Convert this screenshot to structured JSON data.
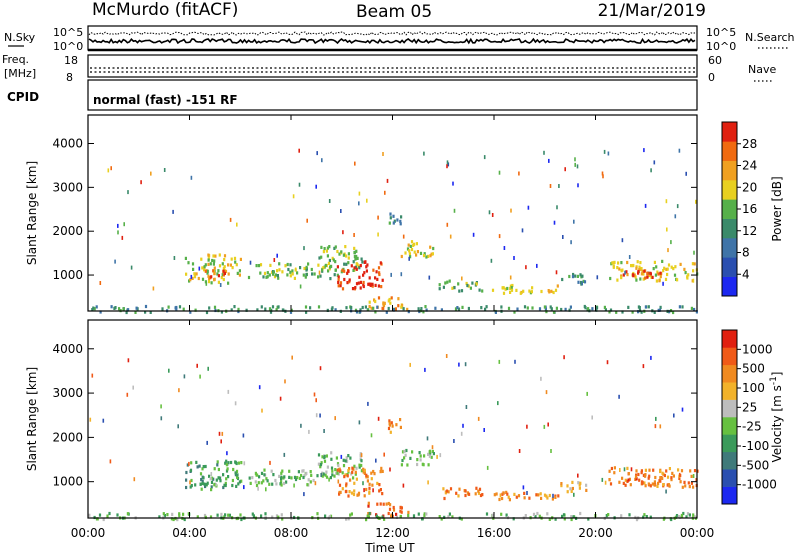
{
  "header": {
    "station": "McMurdo (fitACF)",
    "beam": "Beam 05",
    "date": "21/Mar/2019"
  },
  "noise_panel": {
    "left_label": "N.Sky",
    "left_ticks": [
      "10^5",
      "10^0"
    ],
    "right_label": "N.Search",
    "right_ticks": [
      "10^5",
      "10^0"
    ]
  },
  "freq_panel": {
    "left_label_line1": "Freq.",
    "left_label_line2": "[MHz]",
    "left_ticks": [
      "18",
      "8"
    ],
    "right_label": "Nave",
    "right_ticks": [
      "60",
      "0"
    ]
  },
  "cpid_panel": {
    "label": "CPID",
    "text": "normal (fast) -151 RF"
  },
  "colors": {
    "power": [
      "#1c28f0",
      "#2a4fb0",
      "#3f74a8",
      "#3a8a6a",
      "#56b04a",
      "#e8d020",
      "#f0a020",
      "#f06a10",
      "#e02010"
    ],
    "velocity": [
      "#1c28f0",
      "#2a4fb0",
      "#3f7a7a",
      "#3a9a5a",
      "#66c040",
      "#bdbdbd",
      "#f2b22a",
      "#f08a20",
      "#f05a18",
      "#e02010"
    ]
  },
  "chart_data": [
    {
      "type": "heatmap",
      "title": "Power",
      "xlabel": "Time UT",
      "ylabel": "Slant Range [km]",
      "x_ticks": [
        "00:00",
        "04:00",
        "08:00",
        "12:00",
        "16:00",
        "20:00",
        "00:00"
      ],
      "xlim_hours": [
        0,
        24
      ],
      "ylim_km": [
        180,
        4650
      ],
      "y_ticks": [
        1000,
        2000,
        3000,
        4000
      ],
      "colorbar": {
        "label": "Power [dB]",
        "range": [
          0,
          32
        ],
        "ticks": [
          "4",
          "8",
          "12",
          "16",
          "20",
          "24",
          "28"
        ]
      },
      "echo_regions": [
        {
          "t0": 3.8,
          "t1": 6.0,
          "r0": 850,
          "r1": 1500,
          "level": 5
        },
        {
          "t0": 4.5,
          "t1": 5.6,
          "r0": 950,
          "r1": 1150,
          "level": 7
        },
        {
          "t0": 6.3,
          "t1": 9.8,
          "r0": 950,
          "r1": 1300,
          "level": 4
        },
        {
          "t0": 9.0,
          "t1": 10.8,
          "r0": 1100,
          "r1": 1700,
          "level": 4
        },
        {
          "t0": 9.8,
          "t1": 11.6,
          "r0": 700,
          "r1": 1350,
          "level": 8
        },
        {
          "t0": 11.8,
          "t1": 12.3,
          "r0": 2150,
          "r1": 2450,
          "level": 3
        },
        {
          "t0": 12.3,
          "t1": 13.6,
          "r0": 1400,
          "r1": 1800,
          "level": 5
        },
        {
          "t0": 13.8,
          "t1": 15.6,
          "r0": 650,
          "r1": 900,
          "level": 4
        },
        {
          "t0": 11.0,
          "t1": 12.6,
          "r0": 250,
          "r1": 550,
          "level": 6
        },
        {
          "t0": 15.8,
          "t1": 18.6,
          "r0": 600,
          "r1": 800,
          "level": 5
        },
        {
          "t0": 18.5,
          "t1": 19.6,
          "r0": 800,
          "r1": 1050,
          "level": 3
        },
        {
          "t0": 20.5,
          "t1": 24.0,
          "r0": 900,
          "r1": 1350,
          "level": 5
        },
        {
          "t0": 21.0,
          "t1": 22.6,
          "r0": 950,
          "r1": 1150,
          "level": 8
        },
        {
          "t0": 0.0,
          "t1": 24.0,
          "r0": 180,
          "r1": 320,
          "level": 3
        }
      ]
    },
    {
      "type": "heatmap",
      "title": "Velocity",
      "xlabel": "Time UT",
      "ylabel": "Slant Range [km]",
      "x_ticks": [
        "00:00",
        "04:00",
        "08:00",
        "12:00",
        "16:00",
        "20:00",
        "00:00"
      ],
      "xlim_hours": [
        0,
        24
      ],
      "ylim_km": [
        180,
        4650
      ],
      "y_ticks": [
        1000,
        2000,
        3000,
        4000
      ],
      "colorbar": {
        "label": "Velocity [m s^-1]",
        "ticks": [
          "1000",
          "500",
          "100",
          "25",
          "-25",
          "-100",
          "-500",
          "-1000"
        ]
      },
      "echo_regions": [
        {
          "t0": 3.8,
          "t1": 6.0,
          "r0": 850,
          "r1": 1500,
          "level": 3
        },
        {
          "t0": 4.5,
          "t1": 5.6,
          "r0": 950,
          "r1": 1150,
          "level": 4
        },
        {
          "t0": 6.3,
          "t1": 9.8,
          "r0": 950,
          "r1": 1300,
          "level": 4
        },
        {
          "t0": 9.0,
          "t1": 10.8,
          "r0": 1100,
          "r1": 1700,
          "level": 4
        },
        {
          "t0": 9.8,
          "t1": 11.6,
          "r0": 700,
          "r1": 1350,
          "level": 7
        },
        {
          "t0": 11.8,
          "t1": 12.3,
          "r0": 2150,
          "r1": 2450,
          "level": 7
        },
        {
          "t0": 12.3,
          "t1": 13.6,
          "r0": 1400,
          "r1": 1800,
          "level": 4
        },
        {
          "t0": 13.8,
          "t1": 15.6,
          "r0": 650,
          "r1": 900,
          "level": 7
        },
        {
          "t0": 11.0,
          "t1": 12.6,
          "r0": 250,
          "r1": 550,
          "level": 8
        },
        {
          "t0": 15.8,
          "t1": 18.6,
          "r0": 600,
          "r1": 800,
          "level": 7
        },
        {
          "t0": 18.5,
          "t1": 19.6,
          "r0": 800,
          "r1": 1050,
          "level": 6
        },
        {
          "t0": 20.5,
          "t1": 24.0,
          "r0": 900,
          "r1": 1350,
          "level": 7
        },
        {
          "t0": 21.0,
          "t1": 22.6,
          "r0": 950,
          "r1": 1150,
          "level": 8
        },
        {
          "t0": 0.0,
          "t1": 24.0,
          "r0": 180,
          "r1": 320,
          "level": 4
        }
      ]
    }
  ]
}
